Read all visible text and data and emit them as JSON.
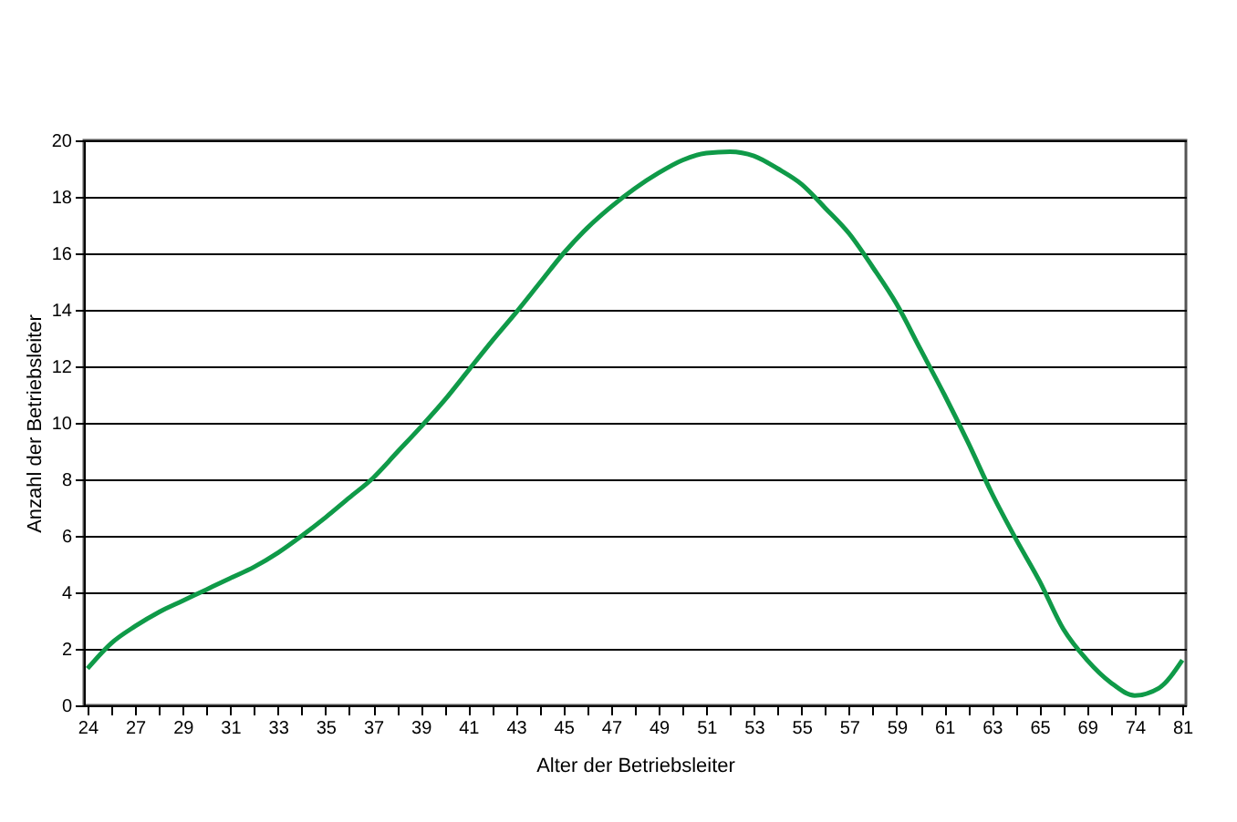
{
  "chart_data": {
    "type": "line",
    "xlabel": "Alter der Betriebsleiter",
    "ylabel": "Anzahl der Betriebsleiter",
    "categories": [
      "24",
      null,
      "27",
      null,
      "29",
      null,
      "31",
      null,
      "33",
      null,
      "35",
      null,
      "37",
      null,
      "39",
      null,
      "41",
      null,
      "43",
      null,
      "45",
      null,
      "47",
      null,
      "49",
      null,
      "51",
      null,
      "53",
      null,
      "55",
      null,
      "57",
      null,
      "59",
      null,
      "61",
      null,
      "63",
      null,
      "65",
      null,
      "69",
      null,
      "74",
      null,
      "81"
    ],
    "series": [
      {
        "color": "#0f9a48",
        "values": [
          1.3,
          2.2,
          2.8,
          3.3,
          3.7,
          4.1,
          4.5,
          4.9,
          5.4,
          6.0,
          6.65,
          7.35,
          8.05,
          8.95,
          9.85,
          10.8,
          11.85,
          12.9,
          13.9,
          14.95,
          16.0,
          16.9,
          17.65,
          18.3,
          18.85,
          19.3,
          19.55,
          19.6,
          19.45,
          19.0,
          18.45,
          17.6,
          16.7,
          15.5,
          14.2,
          12.6,
          11.0,
          9.3,
          7.5,
          5.9,
          4.4,
          2.7,
          1.6,
          0.8,
          0.35,
          0.6,
          1.6
        ]
      }
    ],
    "ylim": [
      0,
      20
    ],
    "yticks": [
      0,
      2,
      4,
      6,
      8,
      10,
      12,
      14,
      16,
      18,
      20
    ],
    "grid": "y",
    "legend": false,
    "marker": "none",
    "line_style": "solid"
  }
}
